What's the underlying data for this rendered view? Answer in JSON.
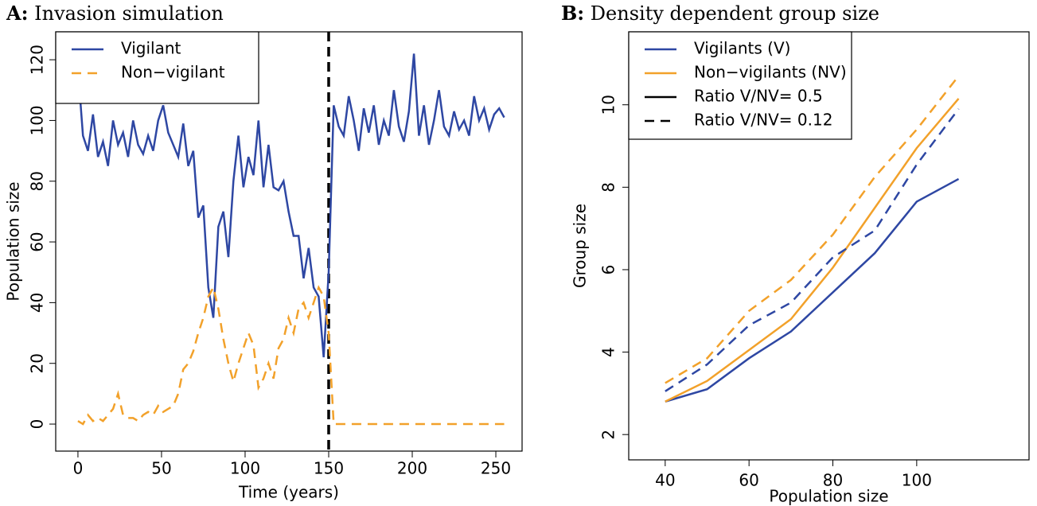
{
  "chart_data": [
    {
      "type": "line",
      "panel": "A:",
      "title": "Invasion simulation",
      "xlabel": "Time (years)",
      "ylabel": "Population size",
      "x": [
        0,
        3,
        6,
        9,
        12,
        15,
        18,
        21,
        24,
        27,
        30,
        33,
        36,
        39,
        42,
        45,
        48,
        51,
        54,
        57,
        60,
        63,
        66,
        69,
        72,
        75,
        78,
        81,
        84,
        87,
        90,
        93,
        96,
        99,
        102,
        105,
        108,
        111,
        114,
        117,
        120,
        123,
        126,
        129,
        132,
        135,
        138,
        141,
        144,
        147,
        150,
        153,
        156,
        159,
        162,
        165,
        168,
        171,
        174,
        177,
        180,
        183,
        186,
        189,
        192,
        195,
        198,
        201,
        204,
        207,
        210,
        213,
        216,
        219,
        222,
        225,
        228,
        231,
        234,
        237,
        240,
        243,
        246,
        249,
        252,
        255
      ],
      "series": [
        {
          "name": "Vigilant",
          "color": "#2e47a3",
          "dash": false,
          "values": [
            117,
            95,
            90,
            102,
            88,
            93,
            85,
            100,
            92,
            96,
            88,
            100,
            92,
            89,
            95,
            90,
            100,
            105,
            96,
            92,
            88,
            99,
            85,
            90,
            68,
            72,
            45,
            35,
            65,
            70,
            55,
            80,
            95,
            78,
            88,
            82,
            100,
            78,
            92,
            78,
            77,
            80,
            70,
            62,
            62,
            48,
            58,
            45,
            42,
            22,
            50,
            105,
            98,
            95,
            108,
            100,
            90,
            104,
            96,
            105,
            92,
            100,
            95,
            110,
            98,
            93,
            103,
            122,
            95,
            105,
            92,
            100,
            110,
            98,
            95,
            103,
            97,
            100,
            95,
            108,
            100,
            104,
            97,
            102,
            104,
            101
          ]
        },
        {
          "name": "Non−vigilant",
          "color": "#f2a12a",
          "dash": true,
          "values": [
            1,
            0,
            3,
            1,
            2,
            1,
            3,
            5,
            10,
            3,
            2,
            2,
            1,
            3,
            4,
            3,
            6,
            4,
            5,
            6,
            10,
            18,
            20,
            24,
            30,
            35,
            42,
            45,
            38,
            28,
            20,
            14,
            20,
            25,
            30,
            26,
            12,
            15,
            20,
            15,
            25,
            28,
            35,
            30,
            38,
            40,
            35,
            40,
            45,
            42,
            30,
            0,
            0,
            0,
            0,
            0,
            0,
            0,
            0,
            0,
            0,
            0,
            0,
            0,
            0,
            0,
            0,
            0,
            0,
            0,
            0,
            0,
            0,
            0,
            0,
            0,
            0,
            0,
            0,
            0,
            0,
            0,
            0,
            0,
            0,
            0
          ]
        }
      ],
      "vline": 150,
      "xlim": [
        -13.3,
        265.7
      ],
      "xticks": [
        0,
        50,
        100,
        150,
        200,
        250
      ],
      "ylim": [
        -8.9,
        129.2
      ],
      "yticks": [
        0,
        20,
        40,
        60,
        80,
        100,
        120
      ],
      "legend": "topleft"
    },
    {
      "type": "line",
      "panel": "B:",
      "title": "Density dependent group size",
      "xlabel": "Population size",
      "ylabel": "Group size",
      "x": [
        40,
        50,
        60,
        70,
        80,
        90,
        100,
        110
      ],
      "series": [
        {
          "color": "#2e47a3",
          "dash": false,
          "values": [
            2.8,
            3.1,
            3.85,
            4.5,
            5.45,
            6.4,
            7.65,
            8.2
          ]
        },
        {
          "color": "#f2a12a",
          "dash": false,
          "values": [
            2.8,
            3.3,
            4.05,
            4.8,
            6.05,
            7.5,
            8.95,
            10.15
          ]
        },
        {
          "color": "#2e47a3",
          "dash": true,
          "values": [
            3.05,
            3.7,
            4.65,
            5.2,
            6.3,
            6.95,
            8.55,
            9.9
          ]
        },
        {
          "color": "#f2a12a",
          "dash": true,
          "values": [
            3.25,
            3.85,
            5.0,
            5.75,
            6.85,
            8.25,
            9.4,
            10.7
          ]
        }
      ],
      "legend_entries": [
        {
          "label": "Vigilants (V)",
          "color": "#2e47a3",
          "dash": false
        },
        {
          "label": "Non−vigilants (NV)",
          "color": "#f2a12a",
          "dash": false
        },
        {
          "label": "Ratio V/NV= 0.5",
          "color": "#000000",
          "dash": false
        },
        {
          "label": "Ratio V/NV= 0.12",
          "color": "#000000",
          "dash": true
        }
      ],
      "xlim": [
        31.3,
        126.8
      ],
      "xticks": [
        40,
        60,
        80,
        100
      ],
      "ylim": [
        1.386,
        11.77
      ],
      "yticks": [
        2,
        4,
        6,
        8,
        10
      ],
      "legend": "topleft"
    }
  ]
}
